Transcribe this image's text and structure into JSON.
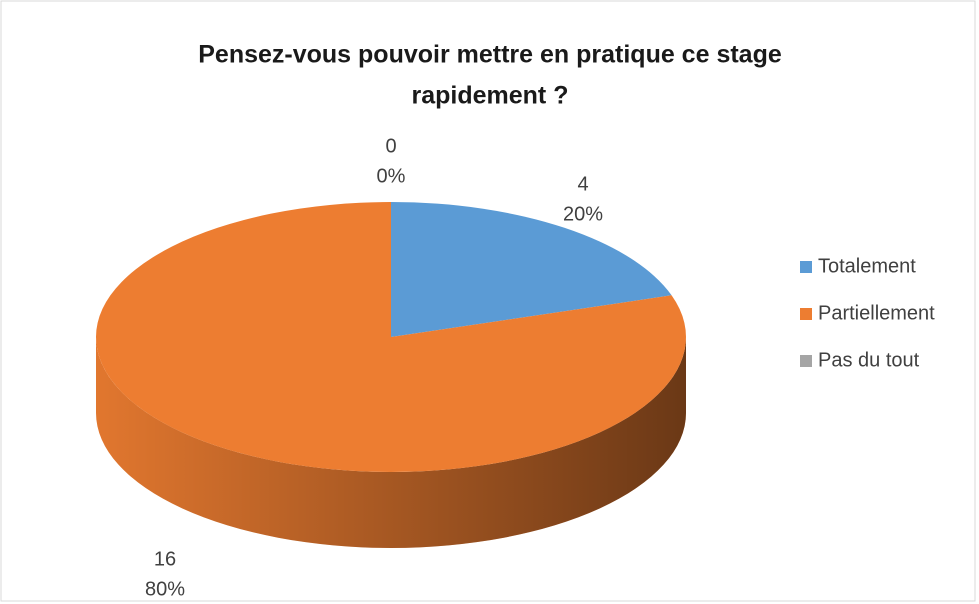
{
  "chart_data": {
    "type": "pie",
    "title_lines": [
      "Pensez-vous pouvoir mettre en pratique ce stage",
      "rapidement ?"
    ],
    "categories": [
      "Totalement",
      "Partiellement",
      "Pas du tout"
    ],
    "values": [
      4,
      16,
      0
    ],
    "percent_labels": [
      "20%",
      "80%",
      "0%"
    ],
    "colors": [
      "#5b9bd5",
      "#ed7d31",
      "#a5a5a5"
    ],
    "legend": "right"
  }
}
